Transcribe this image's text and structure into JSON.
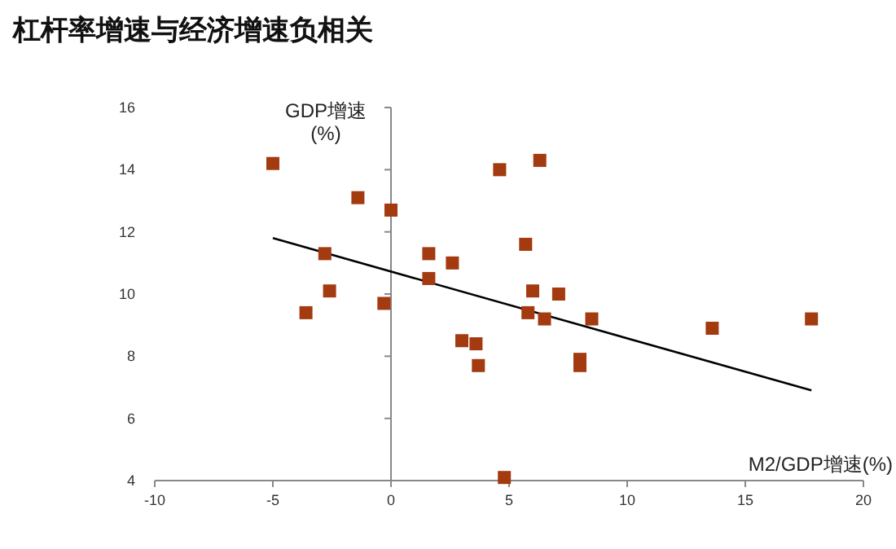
{
  "chart_data": {
    "type": "scatter",
    "title": "杠杆率增速与经济增速负相关",
    "xlabel": "M2/GDP增速(%)",
    "ylabel": "GDP增速\n(%)",
    "xlim": [
      -10,
      20
    ],
    "ylim": [
      4,
      16
    ],
    "xticks": [
      -10,
      -5,
      0,
      5,
      10,
      15,
      20
    ],
    "yticks": [
      4,
      6,
      8,
      10,
      12,
      14,
      16
    ],
    "series": [
      {
        "color": "#a33a10",
        "marker": "square",
        "x": [
          -5.0,
          -1.4,
          0.0,
          -2.8,
          -2.6,
          -3.6,
          -0.3,
          4.6,
          6.3,
          1.6,
          2.6,
          1.6,
          5.7,
          6.0,
          7.1,
          5.8,
          6.5,
          8.5,
          3.0,
          3.6,
          3.7,
          8.0,
          8.0,
          13.6,
          17.8,
          4.8
        ],
        "values": [
          14.2,
          13.1,
          12.7,
          11.3,
          10.1,
          9.4,
          9.7,
          14.0,
          14.3,
          11.3,
          11.0,
          10.5,
          11.6,
          10.1,
          10.0,
          9.4,
          9.2,
          9.2,
          8.5,
          8.4,
          7.7,
          7.9,
          7.7,
          8.9,
          9.2,
          4.1
        ]
      },
      {
        "type": "line",
        "color": "#000000",
        "marker": "none",
        "x": [
          -5.0,
          17.8
        ],
        "values": [
          11.8,
          6.9
        ]
      }
    ]
  }
}
